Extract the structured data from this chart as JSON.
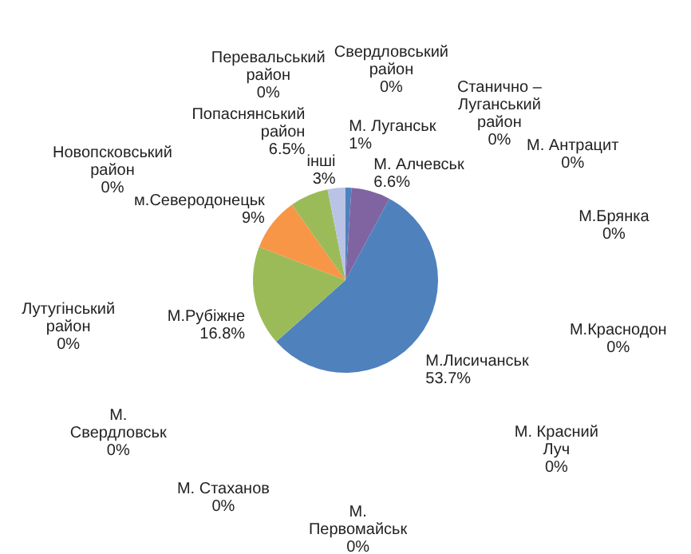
{
  "chart_data": {
    "type": "pie",
    "data_labels": true,
    "value_labels": [
      "1%",
      "0%",
      "0%",
      "6.6%",
      "0%",
      "0%",
      "53.7%",
      "0%",
      "16.8%",
      "0%",
      "0%",
      "9%",
      "0%",
      "0%",
      "6.5%",
      "0%",
      "0%",
      "0%",
      "3%"
    ],
    "categories": [
      "М. Луганськ",
      "М. Антрацит",
      "М.Брянка",
      "М. Алчевськ",
      "М.Краснодон",
      "М. Красний Луч",
      "М.Лисичанськ",
      "М. Первомайськ",
      "М.Рубіжне",
      "М. Стаханов",
      "М. Свердловськ",
      "м.Северодонецьк",
      "Лутугінський район",
      "Новопсковський район",
      "Попаснянський район",
      "Перевальський район",
      "Свердловський район",
      "Станично – Луганський район",
      "інші"
    ],
    "values": [
      1,
      0,
      0,
      6.6,
      0,
      0,
      53.7,
      0,
      16.8,
      0,
      0,
      9,
      0,
      0,
      6.5,
      0,
      0,
      0,
      3
    ],
    "colors": [
      "#4f81bd",
      "#c0504d",
      "#9bbb59",
      "#8064a2",
      "#4bacc6",
      "#f79646",
      "#4f81bd",
      "#c0504d",
      "#9bbb59",
      "#4bacc6",
      "#1f3864",
      "#f79646",
      "#4bacc6",
      "#8064a2",
      "#9bbb59",
      "#c0504d",
      "#4f81bd",
      "#8064a2",
      "#b9c3e6"
    ]
  }
}
